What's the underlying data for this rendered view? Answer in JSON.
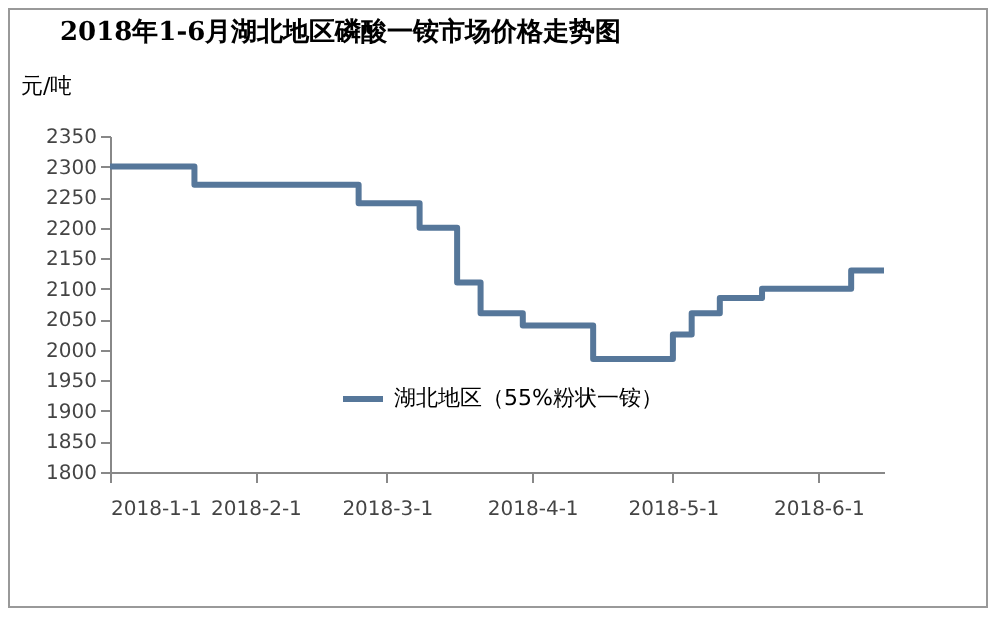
{
  "chart_data": {
    "type": "step",
    "title": "2018年1-6月湖北地区磷酸一铵市场价格走势图",
    "ylabel": "元/吨",
    "x": [
      "2018-01-01",
      "2018-01-19",
      "2018-02-23",
      "2018-03-08",
      "2018-03-16",
      "2018-03-21",
      "2018-03-30",
      "2018-04-14",
      "2018-05-01",
      "2018-05-05",
      "2018-05-11",
      "2018-05-20",
      "2018-06-08",
      "2018-06-15"
    ],
    "series": [
      {
        "name": "湖北地区（55%粉状一铵）",
        "color": "#56779a",
        "values": [
          2300,
          2270,
          2240,
          2200,
          2110,
          2060,
          2040,
          1985,
          2025,
          2060,
          2085,
          2100,
          2130,
          2130
        ]
      }
    ],
    "xlim": [
      "2018-01-01",
      "2018-06-15"
    ],
    "xticks": [
      {
        "value": "2018-01-01",
        "label": "2018-1-1"
      },
      {
        "value": "2018-02-01",
        "label": "2018-2-1"
      },
      {
        "value": "2018-03-01",
        "label": "2018-3-1"
      },
      {
        "value": "2018-04-01",
        "label": "2018-4-1"
      },
      {
        "value": "2018-05-01",
        "label": "2018-5-1"
      },
      {
        "value": "2018-06-01",
        "label": "2018-6-1"
      }
    ],
    "ylim": [
      1800,
      2350
    ],
    "yticks": [
      1800,
      1850,
      1900,
      1950,
      2000,
      2050,
      2100,
      2150,
      2200,
      2250,
      2300,
      2350
    ],
    "grid": false,
    "legend": "bottom left",
    "line_style": "solid",
    "marker": "none"
  }
}
